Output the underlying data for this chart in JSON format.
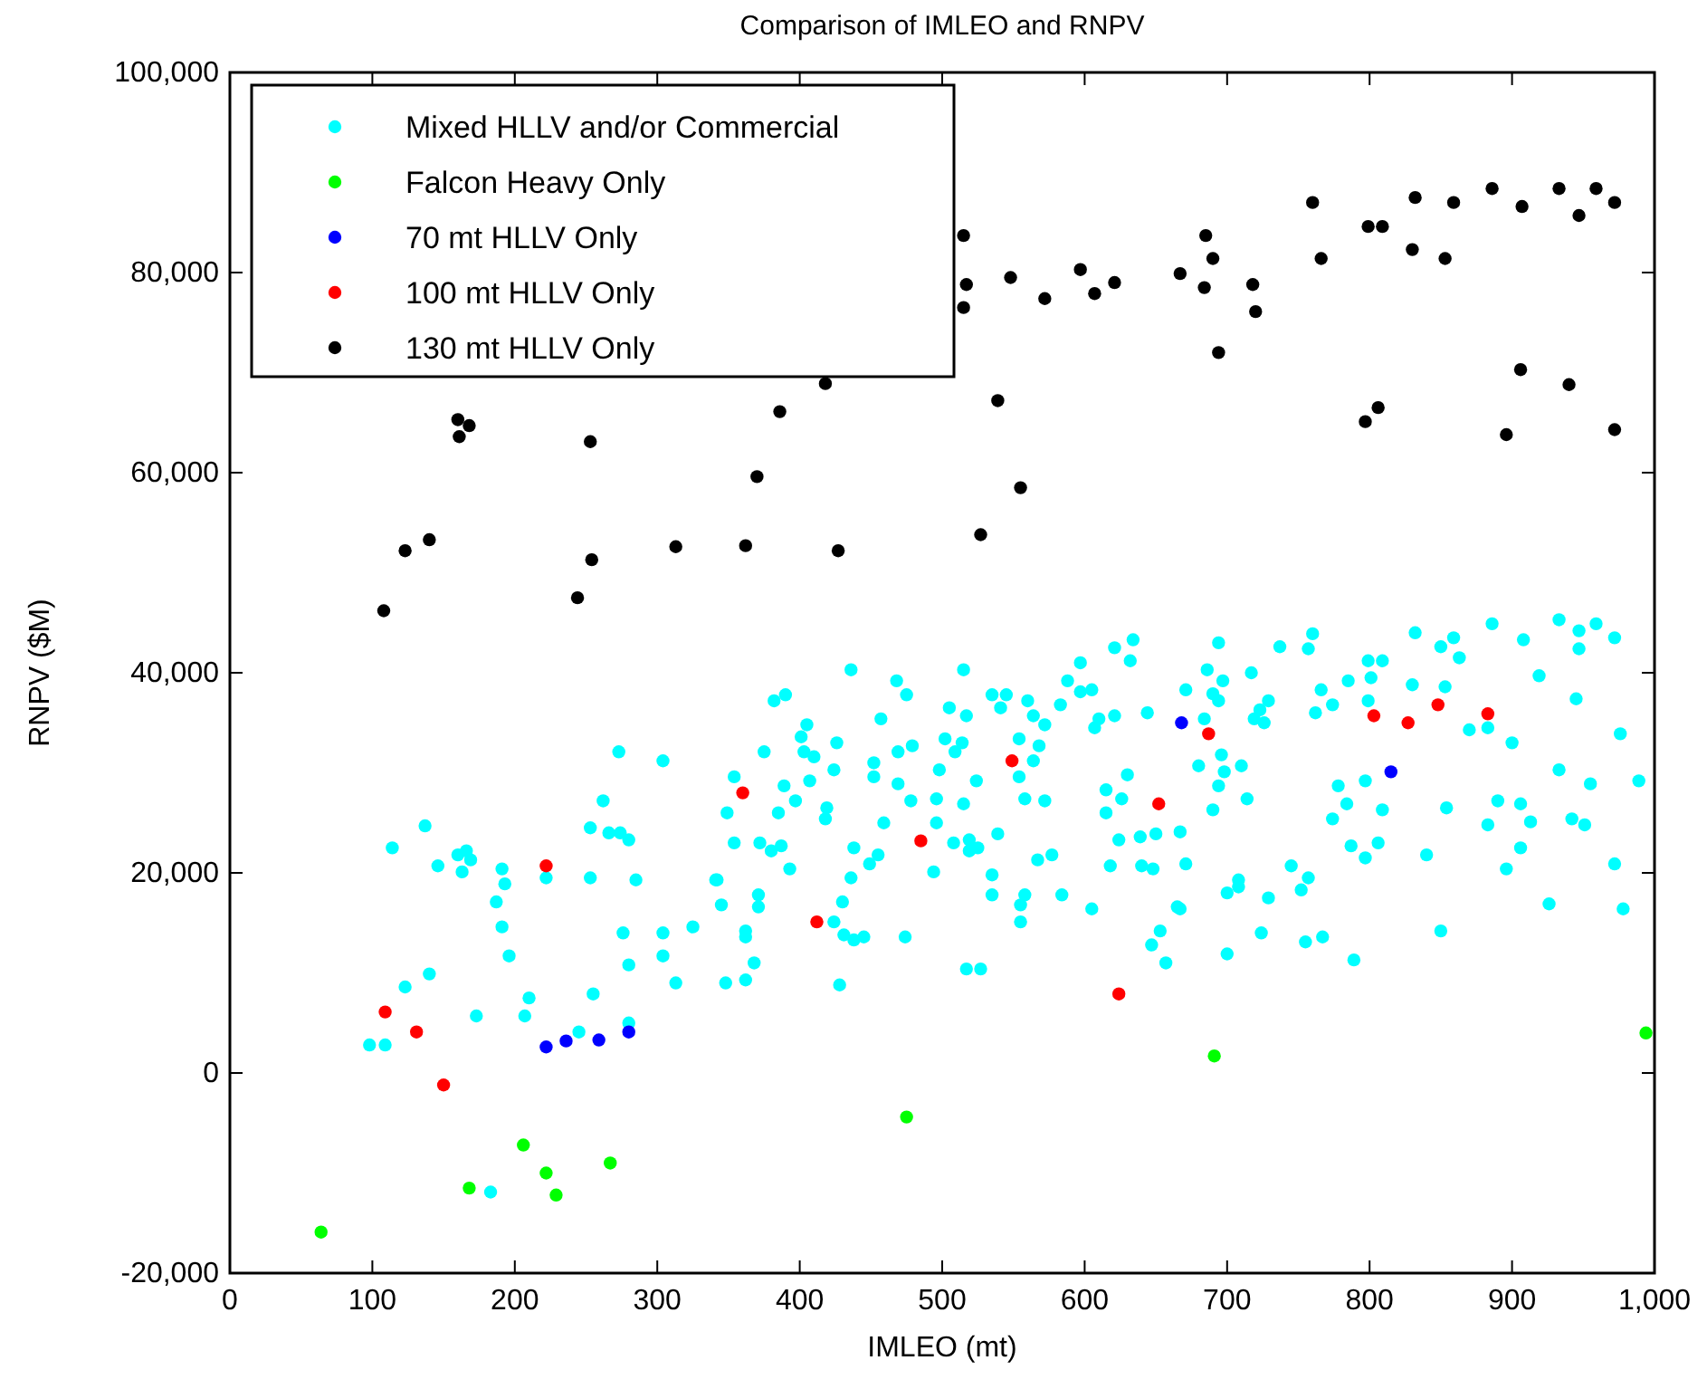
{
  "chart_data": {
    "type": "scatter",
    "title": "Comparison of IMLEO and RNPV",
    "xlabel": "IMLEO (mt)",
    "ylabel": "RNPV ($M)",
    "xlim": [
      0,
      1000
    ],
    "ylim": [
      -20000,
      100000
    ],
    "xticks": [
      0,
      100,
      200,
      300,
      400,
      500,
      600,
      700,
      800,
      900,
      {
        "value": 1000,
        "label": "1,000"
      }
    ],
    "yticks": [
      {
        "value": -20000,
        "label": "-20,000"
      },
      0,
      {
        "value": 20000,
        "label": "20,000"
      },
      {
        "value": 40000,
        "label": "40,000"
      },
      {
        "value": 60000,
        "label": "60,000"
      },
      {
        "value": 80000,
        "label": "80,000"
      },
      {
        "value": 100000,
        "label": "100,000"
      }
    ],
    "grid": false,
    "legend": "top left",
    "marker": "circle",
    "series": [
      {
        "name": "Mixed HLLV and/or Commercial",
        "color": "#00ffff",
        "x": [
          273,
          304,
          262,
          137,
          253,
          266,
          274,
          280,
          114,
          160,
          166,
          169,
          146,
          163,
          191,
          193,
          222,
          253,
          285,
          341,
          187,
          191,
          276,
          304,
          325,
          196,
          280,
          304,
          313,
          123,
          140,
          210,
          255,
          173,
          207,
          245,
          280,
          98,
          109,
          183,
          436,
          515,
          468,
          382,
          390,
          475,
          505,
          517,
          535,
          545,
          541,
          560,
          564,
          572,
          583,
          588,
          597,
          597,
          605,
          607,
          610,
          621,
          634,
          632,
          621,
          644,
          405,
          401,
          375,
          426,
          457,
          403,
          410,
          452,
          469,
          479,
          502,
          514,
          509,
          554,
          568,
          564,
          354,
          389,
          407,
          424,
          452,
          469,
          498,
          524,
          554,
          558,
          572,
          496,
          515,
          478,
          397,
          349,
          385,
          419,
          418,
          459,
          496,
          539,
          354,
          372,
          380,
          387,
          438,
          455,
          449,
          508,
          519,
          519,
          525,
          567,
          577,
          393,
          436,
          494,
          535,
          342,
          345,
          371,
          371,
          430,
          535,
          558,
          555,
          584,
          605,
          555,
          424,
          431,
          438,
          445,
          474,
          362,
          362,
          368,
          348,
          362,
          428,
          517,
          527,
          615,
          626,
          630,
          615,
          624,
          639,
          650,
          618,
          640,
          648,
          665,
          653,
          647,
          657,
          694,
          737,
          760,
          757,
          686,
          717,
          671,
          697,
          690,
          694,
          684,
          719,
          726,
          723,
          729,
          766,
          762,
          774,
          785,
          799,
          809,
          801,
          799,
          832,
          850,
          859,
          863,
          830,
          853,
          886,
          908,
          919,
          933,
          947,
          947,
          959,
          972,
          945,
          870,
          883,
          900,
          976,
          933,
          955,
          989,
          680,
          696,
          710,
          698,
          694,
          714,
          690,
          667,
          671,
          667,
          778,
          797,
          784,
          774,
          809,
          854,
          890,
          906,
          883,
          913,
          942,
          951,
          906,
          896,
          787,
          806,
          797,
          840,
          972,
          745,
          757,
          752,
          708,
          708,
          700,
          729,
          926,
          978,
          724,
          755,
          767,
          850,
          789,
          700
        ],
        "values": [
          32100,
          31200,
          27200,
          24700,
          24500,
          24000,
          24000,
          23300,
          22500,
          21800,
          22200,
          21300,
          20700,
          20100,
          20400,
          18900,
          19500,
          19500,
          19300,
          19300,
          17100,
          14600,
          14000,
          14000,
          14600,
          11700,
          10800,
          11700,
          9000,
          8600,
          9900,
          7500,
          7900,
          5700,
          5700,
          4100,
          5000,
          2800,
          2800,
          -11900,
          40300,
          40300,
          39200,
          37200,
          37800,
          37800,
          36500,
          35700,
          37800,
          37800,
          36500,
          37200,
          35700,
          34800,
          36800,
          39200,
          41000,
          38100,
          38300,
          34500,
          35400,
          42500,
          43300,
          41200,
          35700,
          36000,
          34800,
          33600,
          32100,
          33000,
          35400,
          32100,
          31600,
          31000,
          32100,
          32700,
          33400,
          33000,
          32100,
          33400,
          32700,
          31200,
          29600,
          28700,
          29200,
          30300,
          29600,
          28900,
          30300,
          29200,
          29600,
          27400,
          27200,
          27400,
          26900,
          27200,
          27200,
          26000,
          26000,
          26500,
          25400,
          25000,
          25000,
          23900,
          23000,
          23000,
          22200,
          22700,
          22500,
          21800,
          20900,
          23000,
          23300,
          22200,
          22500,
          21300,
          21800,
          20400,
          19500,
          20100,
          19800,
          19300,
          16800,
          17800,
          16600,
          17100,
          17800,
          17800,
          16800,
          17800,
          16400,
          15100,
          15100,
          13800,
          13300,
          13600,
          13600,
          14200,
          13600,
          11000,
          9000,
          9300,
          8800,
          10400,
          10400,
          28300,
          27400,
          29800,
          26000,
          23300,
          23600,
          23900,
          20700,
          20700,
          20400,
          16600,
          14200,
          12800,
          11000,
          43000,
          42600,
          43900,
          42400,
          40300,
          40000,
          38300,
          39200,
          37900,
          37200,
          35400,
          35400,
          35000,
          36300,
          37200,
          38300,
          36000,
          36800,
          39200,
          41200,
          41200,
          39500,
          37200,
          44000,
          42600,
          43500,
          41500,
          38800,
          38600,
          44900,
          43300,
          39700,
          45300,
          44200,
          42400,
          44900,
          43500,
          37400,
          34300,
          34500,
          33000,
          33900,
          30300,
          28900,
          29200,
          30700,
          31800,
          30700,
          30100,
          28700,
          27400,
          26300,
          24100,
          20900,
          16400,
          28700,
          29200,
          26900,
          25400,
          26300,
          26500,
          27200,
          26900,
          24800,
          25100,
          25400,
          24800,
          22500,
          20400,
          22700,
          23000,
          21500,
          21800,
          20900,
          20700,
          19500,
          18300,
          19300,
          18600,
          18000,
          17500,
          16900,
          16400,
          14000,
          13100,
          13600,
          14200,
          11300,
          11900
        ]
      },
      {
        "name": "Falcon Heavy Only",
        "color": "#00ff00",
        "x": [
          64,
          168,
          206,
          222,
          229,
          267,
          475,
          691,
          994
        ],
        "values": [
          -15900,
          -11500,
          -7200,
          -10000,
          -12200,
          -9000,
          -4400,
          1700,
          4000
        ]
      },
      {
        "name": "70 mt HLLV Only",
        "color": "#0000ff",
        "x": [
          222,
          236,
          259,
          280,
          668,
          815
        ],
        "values": [
          2600,
          3200,
          3300,
          4100,
          35000,
          30100
        ]
      },
      {
        "name": "100 mt HLLV Only",
        "color": "#ff0000",
        "x": [
          109,
          131,
          150,
          222,
          360,
          412,
          485,
          549,
          624,
          652,
          687,
          803,
          827,
          848,
          883
        ],
        "values": [
          6100,
          4100,
          -1200,
          20700,
          28000,
          15100,
          23200,
          31200,
          7900,
          26900,
          33900,
          35700,
          35000,
          36800,
          35900
        ]
      },
      {
        "name": "130 mt HLLV Only",
        "color": "#000000",
        "x": [
          108,
          123,
          140,
          160,
          161,
          168,
          244,
          254,
          253,
          313,
          362,
          370,
          386,
          427,
          418,
          515,
          517,
          515,
          539,
          555,
          527,
          548,
          572,
          597,
          607,
          621,
          667,
          685,
          690,
          684,
          694,
          718,
          720,
          760,
          766,
          799,
          809,
          797,
          806,
          832,
          830,
          859,
          853,
          886,
          907,
          906,
          896,
          933,
          947,
          959,
          972,
          940,
          972
        ],
        "values": [
          46200,
          52200,
          53300,
          65300,
          63600,
          64700,
          47500,
          51300,
          63100,
          52600,
          52700,
          59600,
          66100,
          52200,
          68900,
          83700,
          78800,
          76500,
          67200,
          58500,
          53800,
          79500,
          77400,
          80300,
          77900,
          79000,
          79900,
          83700,
          81400,
          78500,
          72000,
          78800,
          76100,
          87000,
          81400,
          84600,
          84600,
          65100,
          66500,
          87500,
          82300,
          87000,
          81400,
          88400,
          86600,
          70300,
          63800,
          88400,
          85700,
          88400,
          87000,
          68800,
          64300
        ]
      }
    ]
  }
}
